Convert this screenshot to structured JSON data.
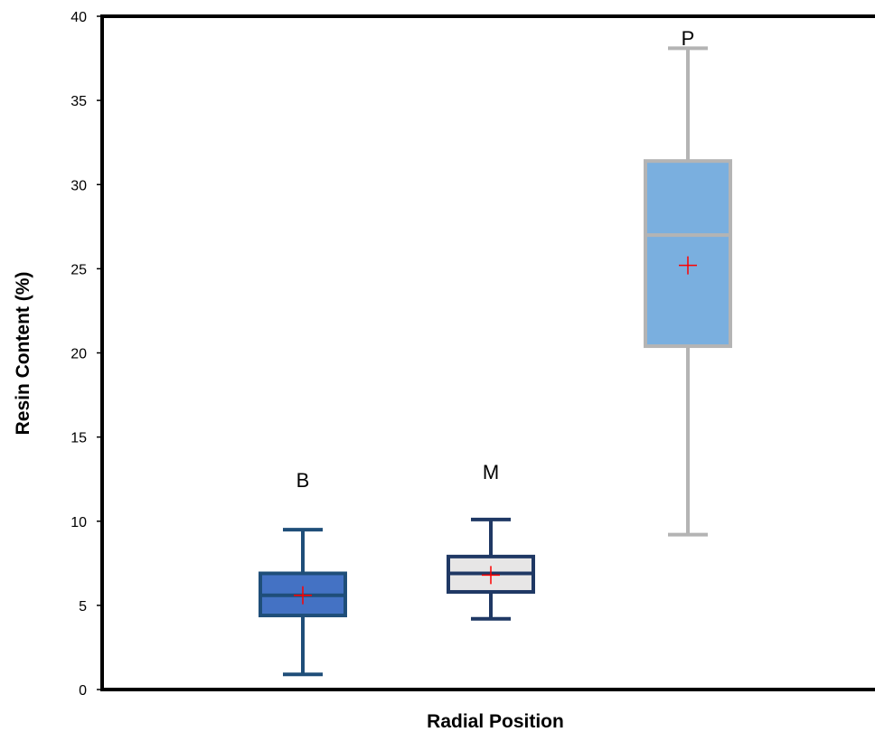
{
  "chart_data": {
    "type": "boxplot",
    "xlabel": "Radial Position",
    "ylabel": "Resin Content (%)",
    "ylim": [
      0,
      40
    ],
    "yticks": [
      0,
      5,
      10,
      15,
      20,
      25,
      30,
      35,
      40
    ],
    "grid": false,
    "legend": "none",
    "series": [
      {
        "label": "B",
        "min": 0.9,
        "q1": 4.4,
        "median": 5.6,
        "q3": 6.9,
        "max": 9.5,
        "mean": 5.6,
        "fill": "#4472c4",
        "stroke": "#1f4e79"
      },
      {
        "label": "M",
        "min": 4.2,
        "q1": 5.8,
        "median": 6.9,
        "q3": 7.9,
        "max": 10.1,
        "mean": 6.8,
        "fill": "#e7e6e6",
        "stroke": "#1f3864"
      },
      {
        "label": "P",
        "min": 9.2,
        "q1": 20.4,
        "median": 27.0,
        "q3": 31.4,
        "max": 38.1,
        "mean": 25.2,
        "fill": "#7aafdf",
        "stroke": "#b4b4b4"
      }
    ],
    "mean_marker_color": "#ff0000"
  }
}
